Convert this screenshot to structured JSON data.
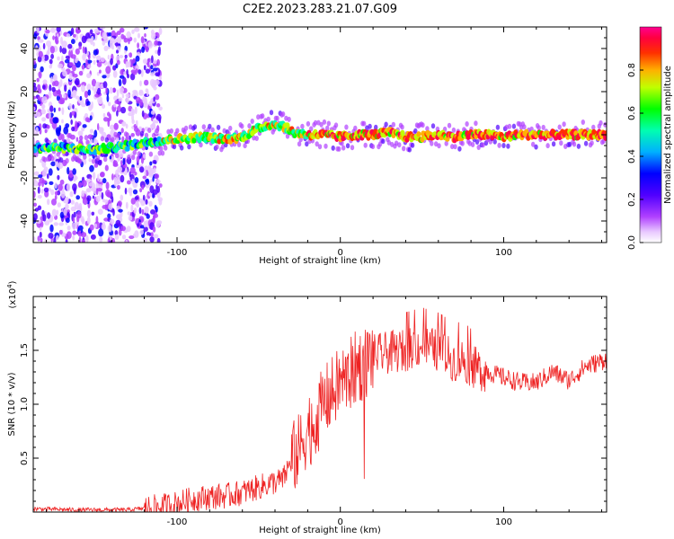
{
  "title": "C2E2.2023.283.21.07.G09",
  "chart_data": [
    {
      "type": "heatmap",
      "xlabel": "Height of straight line (km)",
      "ylabel": "Frequency (Hz)",
      "xlim": [
        -188,
        163
      ],
      "ylim": [
        -50,
        50
      ],
      "x_ticks": [
        -100,
        0,
        100
      ],
      "y_ticks": [
        -40,
        -20,
        0,
        20,
        40
      ],
      "colorbar": {
        "label": "Normalized spectral amplitude",
        "range": [
          0.0,
          1.0
        ],
        "ticks": [
          "0.0",
          "0.2",
          "0.4",
          "0.6",
          "0.8"
        ],
        "colormap": [
          "#ff00ff",
          "#8000ff",
          "#0000ff",
          "#00ffff",
          "#00ff00",
          "#ffff00",
          "#ff8000",
          "#ff0000",
          "#ff0080"
        ]
      },
      "ridge": {
        "x": [
          -188,
          -170,
          -150,
          -130,
          -115,
          -100,
          -85,
          -70,
          -60,
          -50,
          -42,
          -35,
          -28,
          -20,
          -10,
          0,
          10,
          20,
          30,
          40,
          50,
          60,
          70,
          80,
          90,
          100,
          110,
          120,
          130,
          140,
          150,
          163
        ],
        "y": [
          -6,
          -6,
          -7,
          -5,
          -3,
          -2,
          -1,
          -2,
          -1,
          3,
          5,
          4,
          1,
          0,
          0,
          -1,
          0,
          0,
          1,
          -1,
          -1,
          0,
          -1,
          0,
          0,
          -1,
          0,
          0,
          0,
          0,
          0,
          0
        ]
      },
      "scatter_region_x": [
        -188,
        -110
      ]
    },
    {
      "type": "line",
      "xlabel": "Height of straight line (km)",
      "ylabel": "SNR (10 * v/v)",
      "y_scale_label": "(x10",
      "y_scale_exp": "4",
      "y_scale_close": ")",
      "xlim": [
        -188,
        163
      ],
      "ylim": [
        0,
        2.0
      ],
      "x_ticks": [
        -100,
        0,
        100
      ],
      "y_ticks": [
        0.5,
        1.0,
        1.5
      ],
      "y_tick_labels": [
        "0.5",
        "1.0",
        "1.5"
      ],
      "series": [
        {
          "color": "#ee2222",
          "x": [
            -188,
            -160,
            -130,
            -110,
            -100,
            -90,
            -80,
            -70,
            -60,
            -50,
            -40,
            -35,
            -30,
            -25,
            -20,
            -15,
            -10,
            -5,
            0,
            5,
            10,
            15,
            20,
            30,
            40,
            50,
            55,
            60,
            65,
            70,
            75,
            80,
            90,
            100,
            110,
            120,
            130,
            140,
            150,
            160,
            163
          ],
          "y": [
            0.03,
            0.02,
            0.02,
            0.05,
            0.08,
            0.12,
            0.14,
            0.15,
            0.18,
            0.23,
            0.28,
            0.3,
            0.48,
            0.58,
            0.78,
            0.85,
            1.02,
            1.1,
            1.2,
            1.25,
            1.35,
            1.38,
            1.45,
            1.48,
            1.5,
            1.55,
            1.52,
            1.5,
            1.45,
            1.4,
            1.42,
            1.35,
            1.3,
            1.25,
            1.2,
            1.2,
            1.3,
            1.22,
            1.35,
            1.4,
            1.42
          ]
        }
      ]
    }
  ]
}
